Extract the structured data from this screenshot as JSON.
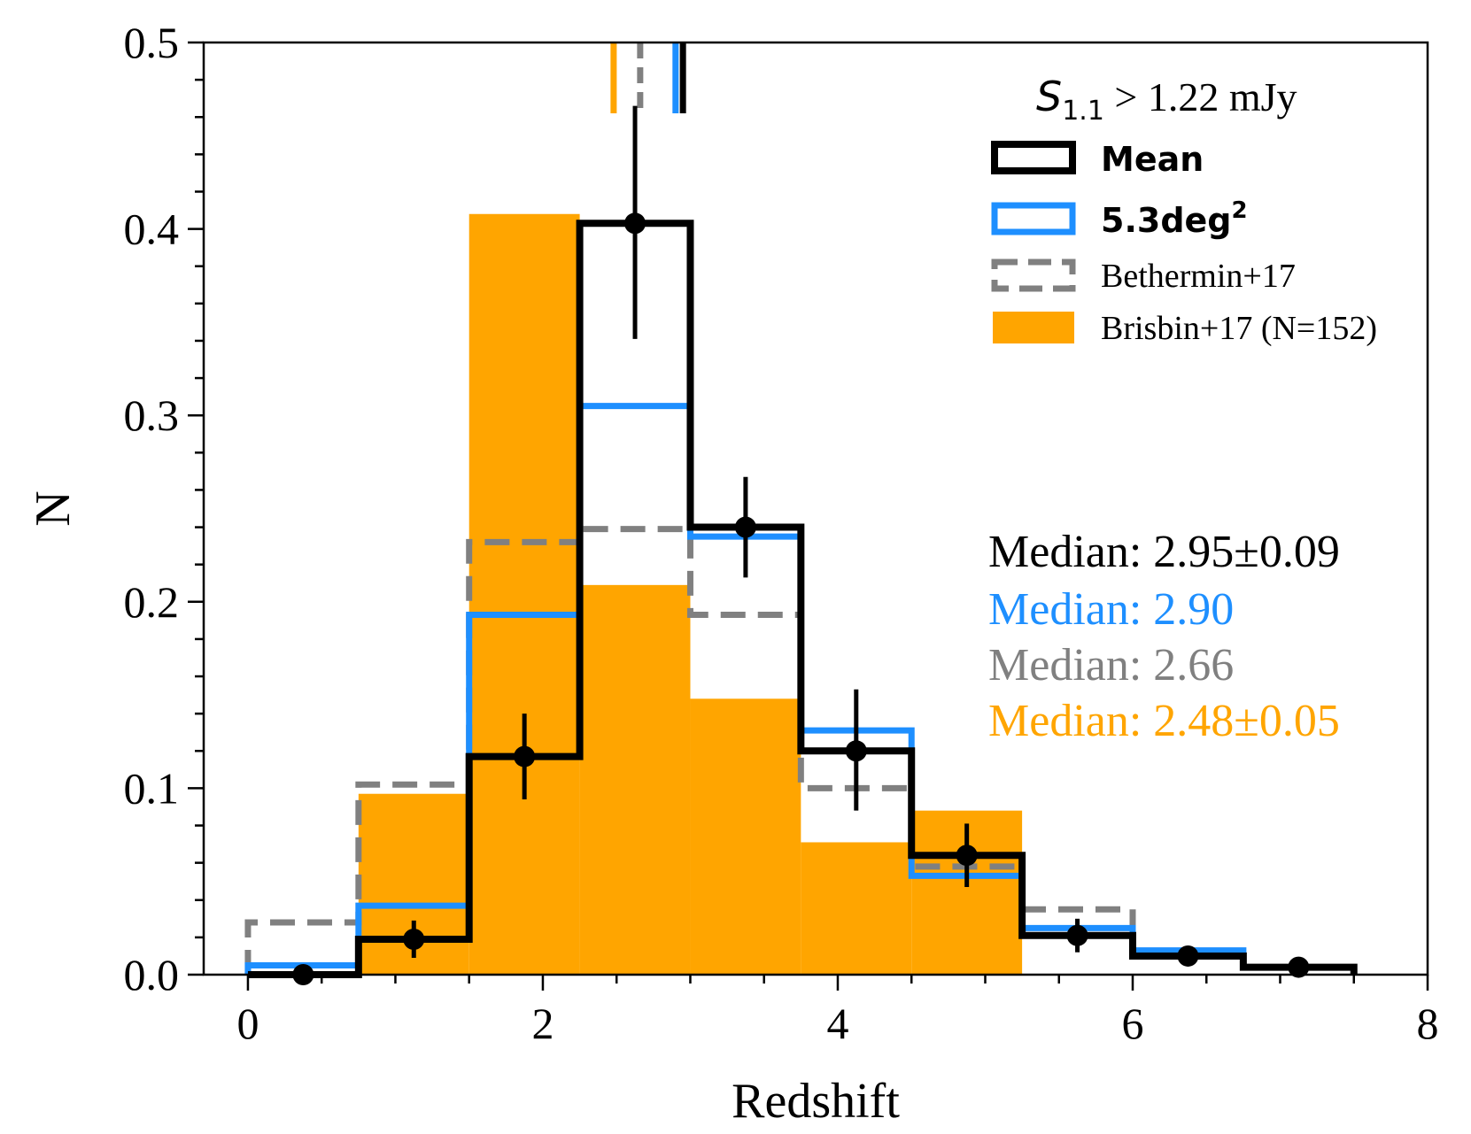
{
  "chart_data": {
    "type": "bar",
    "xlabel": "Redshift",
    "ylabel": "N",
    "xlim": [
      -0.3,
      8
    ],
    "ylim": [
      0,
      0.5
    ],
    "x_ticks": [
      0,
      2,
      4,
      6,
      8
    ],
    "y_ticks": [
      0.0,
      0.1,
      0.2,
      0.3,
      0.4,
      0.5
    ],
    "x_tick_labels": [
      "0",
      "2",
      "4",
      "6",
      "8"
    ],
    "y_tick_labels": [
      "0.0",
      "0.1",
      "0.2",
      "0.3",
      "0.4",
      "0.5"
    ],
    "x_minor_step": 0.5,
    "y_minor_step": 0.02,
    "bin_edges": [
      0,
      0.75,
      1.5,
      2.25,
      3.0,
      3.75,
      4.5,
      5.25,
      6.0,
      6.75,
      7.5
    ],
    "grid": false,
    "legend_position": "top-right",
    "annotation": {
      "label_symbol": "S",
      "label_subscript": "1.1",
      "label_rest": " > 1.22 mJy"
    },
    "series": [
      {
        "name": "Brisbin+17 (N=152)",
        "style": "filled-bar",
        "color": "#FFA500",
        "values": [
          0.0,
          0.097,
          0.408,
          0.209,
          0.148,
          0.071,
          0.088,
          0.0,
          0.0,
          0.0
        ]
      },
      {
        "name": "Bethermin+17",
        "style": "dashed-step",
        "color": "#808080",
        "values": [
          0.028,
          0.102,
          0.232,
          0.239,
          0.193,
          0.1,
          0.058,
          0.035,
          0.011,
          0.004
        ]
      },
      {
        "name": "5.3deg",
        "name_superscript": "2",
        "style": "step",
        "color": "#1E8FFF",
        "values": [
          0.005,
          0.037,
          0.193,
          0.305,
          0.235,
          0.131,
          0.053,
          0.025,
          0.013,
          0.004
        ]
      },
      {
        "name": "Mean",
        "style": "step-errorbar",
        "color": "#000000",
        "values": [
          0.0,
          0.019,
          0.117,
          0.403,
          0.24,
          0.12,
          0.064,
          0.021,
          0.01,
          0.004
        ],
        "errors_low": [
          0.0,
          0.01,
          0.023,
          0.062,
          0.027,
          0.032,
          0.017,
          0.009,
          0.004,
          0.002
        ],
        "errors_high": [
          0.0,
          0.01,
          0.023,
          0.063,
          0.027,
          0.033,
          0.017,
          0.009,
          0.004,
          0.002
        ]
      }
    ],
    "legend_order": [
      3,
      2,
      1,
      0
    ],
    "median_markers": [
      {
        "value": 2.48,
        "color": "#FFA500",
        "style": "solid"
      },
      {
        "value": 2.66,
        "color": "#808080",
        "style": "dashed"
      },
      {
        "value": 2.9,
        "color": "#1E8FFF",
        "style": "solid"
      },
      {
        "value": 2.95,
        "color": "#000000",
        "style": "solid"
      }
    ],
    "median_texts": [
      {
        "text": "Median: 2.95±0.09",
        "color": "#000000"
      },
      {
        "text": "Median: 2.90",
        "color": "#1E8FFF"
      },
      {
        "text": "Median: 2.66",
        "color": "#808080"
      },
      {
        "text": "Median: 2.48±0.05",
        "color": "#FFA500"
      }
    ]
  }
}
